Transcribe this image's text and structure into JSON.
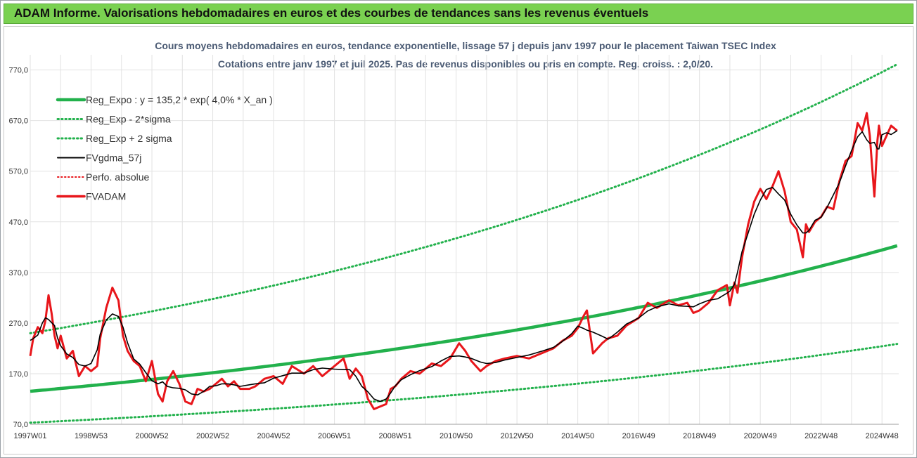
{
  "header": {
    "title": "ADAM Informe. Valorisations hebdomadaires en euros et des courbes de tendances sans les revenus éventuels"
  },
  "chart_data": {
    "type": "line",
    "title": "Cours moyens hebdomadaires en euros, tendance exponentielle, lissage 57 j depuis janv 1997 pour le placement Taiwan TSEC Index",
    "subtitle": "Cotations entre janv 1997 et juil 2025. Pas de revenus disponibles ou pris en compte. Reg. croiss. : 2,0/20.",
    "xlabel": "",
    "ylabel": "",
    "ylim": [
      70,
      800
    ],
    "xlim": [
      1997.0,
      2025.55
    ],
    "grid": true,
    "legend_position": "top-left",
    "y_ticks": [
      "70,0",
      "170,0",
      "270,0",
      "370,0",
      "470,0",
      "570,0",
      "670,0",
      "770,0"
    ],
    "y_tick_values": [
      70,
      170,
      270,
      370,
      470,
      570,
      670,
      770
    ],
    "x_ticks": [
      "1997W01",
      "1998W53",
      "2000W52",
      "2002W52",
      "2004W52",
      "2006W51",
      "2008W51",
      "2010W50",
      "2012W50",
      "2014W50",
      "2016W49",
      "2018W49",
      "2020W49",
      "2022W48",
      "2024W48"
    ],
    "x_tick_values": [
      1997.0,
      1999.0,
      2001.0,
      2003.0,
      2005.0,
      2007.0,
      2009.0,
      2011.0,
      2013.0,
      2015.0,
      2017.0,
      2019.0,
      2021.0,
      2023.0,
      2025.0
    ],
    "regression": {
      "a": 135.2,
      "rate": 0.04,
      "sigma_factor_lower": 0.541,
      "sigma_factor_upper": 1.848
    },
    "series": [
      {
        "name": "Reg_Expo : y = 135,2 * exp( 4,0% * X_an )",
        "color": "#22b14c",
        "style": "solid-thick"
      },
      {
        "name": "Reg_Exp - 2*sigma",
        "color": "#22b14c",
        "style": "dotted"
      },
      {
        "name": "Reg_Exp + 2 sigma",
        "color": "#22b14c",
        "style": "dotted"
      },
      {
        "name": "FVgdma_57j",
        "color": "#000000",
        "style": "solid"
      },
      {
        "name": "Perfo. absolue",
        "color": "#e8161b",
        "style": "dotted"
      },
      {
        "name": "FVADAM",
        "color": "#e8161b",
        "style": "solid-thick",
        "x": [
          1997.0,
          1997.1,
          1997.25,
          1997.4,
          1997.5,
          1997.6,
          1997.7,
          1997.8,
          1997.9,
          1998.0,
          1998.2,
          1998.4,
          1998.6,
          1998.8,
          1999.0,
          1999.2,
          1999.3,
          1999.5,
          1999.7,
          1999.9,
          2000.05,
          2000.2,
          2000.4,
          2000.6,
          2000.8,
          2001.0,
          2001.2,
          2001.35,
          2001.5,
          2001.7,
          2001.9,
          2002.1,
          2002.3,
          2002.5,
          2002.7,
          2002.9,
          2003.1,
          2003.3,
          2003.5,
          2003.7,
          2003.9,
          2004.2,
          2004.4,
          2004.7,
          2005.0,
          2005.3,
          2005.6,
          2006.0,
          2006.3,
          2006.6,
          2007.0,
          2007.3,
          2007.5,
          2007.7,
          2007.9,
          2008.1,
          2008.3,
          2008.5,
          2008.7,
          2008.85,
          2009.0,
          2009.2,
          2009.5,
          2009.8,
          2010.2,
          2010.5,
          2010.8,
          2011.1,
          2011.3,
          2011.5,
          2011.8,
          2012.0,
          2012.3,
          2012.6,
          2013.0,
          2013.4,
          2013.8,
          2014.2,
          2014.5,
          2014.8,
          2015.0,
          2015.2,
          2015.3,
          2015.5,
          2015.8,
          2016.0,
          2016.3,
          2016.6,
          2017.0,
          2017.3,
          2017.6,
          2018.0,
          2018.3,
          2018.6,
          2018.8,
          2019.0,
          2019.3,
          2019.6,
          2019.9,
          2020.0,
          2020.15,
          2020.25,
          2020.4,
          2020.6,
          2020.8,
          2021.0,
          2021.2,
          2021.4,
          2021.6,
          2021.8,
          2022.0,
          2022.2,
          2022.4,
          2022.5,
          2022.6,
          2022.8,
          2023.0,
          2023.2,
          2023.4,
          2023.6,
          2023.8,
          2024.0,
          2024.2,
          2024.35,
          2024.5,
          2024.6,
          2024.75,
          2024.85,
          2024.9,
          2025.0,
          2025.15,
          2025.3,
          2025.5
        ],
        "values": [
          205,
          240,
          262,
          250,
          275,
          325,
          290,
          245,
          220,
          245,
          200,
          215,
          165,
          185,
          175,
          185,
          240,
          300,
          340,
          315,
          245,
          215,
          195,
          185,
          155,
          195,
          130,
          115,
          155,
          175,
          150,
          115,
          110,
          140,
          135,
          140,
          150,
          160,
          145,
          155,
          140,
          140,
          145,
          160,
          165,
          150,
          185,
          170,
          185,
          165,
          185,
          200,
          160,
          180,
          165,
          120,
          100,
          105,
          110,
          140,
          145,
          160,
          175,
          170,
          190,
          185,
          200,
          230,
          215,
          195,
          175,
          185,
          195,
          200,
          205,
          200,
          210,
          220,
          235,
          245,
          260,
          285,
          295,
          210,
          230,
          240,
          245,
          265,
          280,
          310,
          300,
          315,
          305,
          310,
          290,
          295,
          310,
          335,
          345,
          305,
          350,
          330,
          400,
          465,
          510,
          535,
          515,
          540,
          570,
          530,
          470,
          455,
          400,
          465,
          450,
          470,
          480,
          500,
          495,
          550,
          590,
          600,
          665,
          650,
          685,
          640,
          520,
          630,
          660,
          620,
          640,
          660,
          650
        ]
      }
    ]
  }
}
